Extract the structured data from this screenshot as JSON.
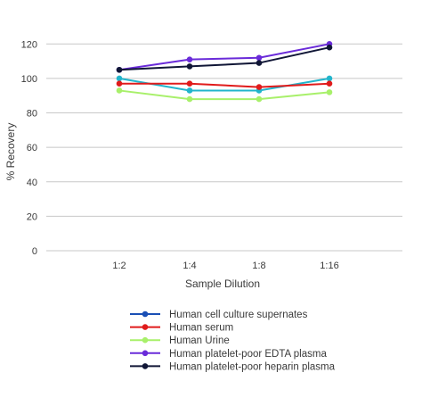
{
  "chart_data": {
    "type": "line",
    "title": "",
    "xlabel": "Sample Dilution",
    "ylabel": "% Recovery",
    "categories": [
      "1:2",
      "1:4",
      "1:8",
      "1:16"
    ],
    "ylim": [
      0,
      130
    ],
    "yticks": [
      0,
      20,
      40,
      60,
      80,
      100,
      120
    ],
    "grid": "horizontal",
    "legend_position": "bottom",
    "series": [
      {
        "name": "Human cell culture supernates",
        "values": [
          100,
          93,
          93,
          100
        ],
        "color": "#22b5cc",
        "legend_color": "#1a4fb5"
      },
      {
        "name": "Human serum",
        "values": [
          97,
          97,
          95,
          97
        ],
        "color": "#e01b1b",
        "legend_color": "#e01b1b"
      },
      {
        "name": "Human Urine",
        "values": [
          93,
          88,
          88,
          92
        ],
        "color": "#a8f06a",
        "legend_color": "#a8f06a"
      },
      {
        "name": "Human platelet-poor EDTA plasma",
        "values": [
          105,
          111,
          112,
          120
        ],
        "color": "#6a2bd9",
        "legend_color": "#6a2bd9"
      },
      {
        "name": "Human platelet-poor heparin plasma",
        "values": [
          105,
          107,
          109,
          118
        ],
        "color": "#101636",
        "legend_color": "#101636"
      }
    ]
  }
}
